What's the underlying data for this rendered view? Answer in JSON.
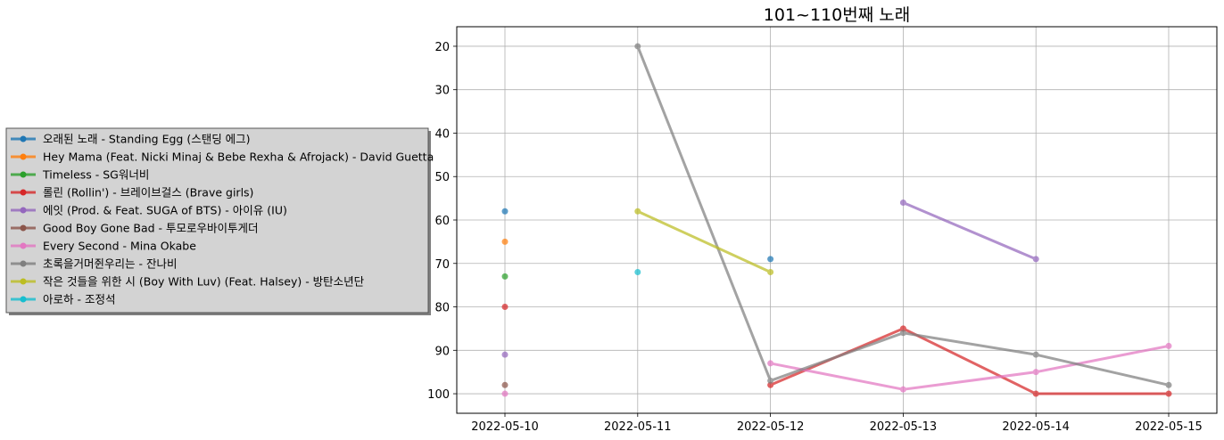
{
  "chart_data": {
    "type": "line",
    "title": "101~110번째 노래",
    "xlabel": "",
    "ylabel": "",
    "x": [
      "2022-05-10",
      "2022-05-11",
      "2022-05-12",
      "2022-05-13",
      "2022-05-14",
      "2022-05-15"
    ],
    "yticks": [
      20,
      30,
      40,
      50,
      60,
      70,
      80,
      90,
      100
    ],
    "ylim": [
      104.5,
      15.5
    ],
    "y_inverted": true,
    "grid": true,
    "legend_position": "left",
    "series": [
      {
        "name": "오래된 노래 - Standing Egg (스탠딩 에그)",
        "color": "#1f77b4",
        "values": [
          58,
          null,
          69,
          null,
          null,
          null
        ]
      },
      {
        "name": "Hey Mama (Feat. Nicki Minaj & Bebe Rexha & Afrojack) - David Guetta",
        "color": "#ff7f0e",
        "values": [
          65,
          null,
          null,
          null,
          null,
          null
        ]
      },
      {
        "name": "Timeless - SG워너비",
        "color": "#2ca02c",
        "values": [
          73,
          null,
          null,
          null,
          null,
          null
        ]
      },
      {
        "name": "롤린 (Rollin') - 브레이브걸스 (Brave girls)",
        "color": "#d62728",
        "values": [
          80,
          null,
          98,
          85,
          100,
          100
        ]
      },
      {
        "name": "에잇 (Prod. & Feat. SUGA of BTS) - 아이유 (IU)",
        "color": "#9467bd",
        "values": [
          91,
          null,
          null,
          56,
          69,
          null
        ]
      },
      {
        "name": "Good Boy Gone Bad - 투모로우바이투게더",
        "color": "#8c564b",
        "values": [
          98,
          null,
          null,
          null,
          null,
          null
        ]
      },
      {
        "name": "Every Second - Mina Okabe",
        "color": "#e377c2",
        "values": [
          100,
          null,
          93,
          99,
          95,
          89
        ]
      },
      {
        "name": "초록을거머쥔우리는 - 잔나비",
        "color": "#7f7f7f",
        "values": [
          null,
          20,
          97,
          86,
          91,
          98
        ]
      },
      {
        "name": "작은 것들을 위한 시 (Boy With Luv) (Feat. Halsey) - 방탄소년단",
        "color": "#bcbd22",
        "values": [
          null,
          58,
          72,
          null,
          null,
          null
        ]
      },
      {
        "name": "아로하 - 조정석",
        "color": "#17becf",
        "values": [
          null,
          72,
          null,
          null,
          null,
          null
        ]
      }
    ]
  }
}
